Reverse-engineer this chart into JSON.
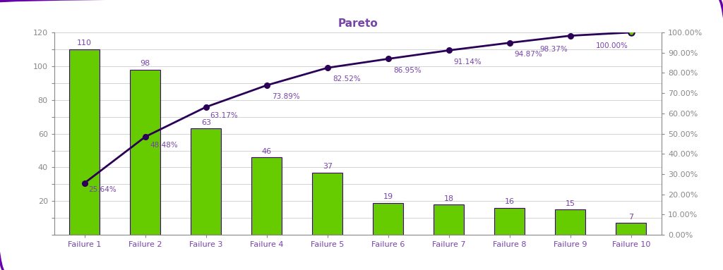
{
  "categories": [
    "Failure 1",
    "Failure 2",
    "Failure 3",
    "Failure 4",
    "Failure 5",
    "Failure 6",
    "Failure 7",
    "Failure 8",
    "Failure 9",
    "Failure 10"
  ],
  "values": [
    110,
    98,
    63,
    46,
    37,
    19,
    18,
    16,
    15,
    7
  ],
  "cumulative_pct": [
    25.64,
    48.48,
    63.17,
    73.89,
    82.52,
    86.95,
    91.14,
    94.87,
    98.37,
    100.0
  ],
  "pct_labels": [
    "25.64%",
    "48.48%",
    "63.17%",
    "73.89%",
    "82.52%",
    "86.95%",
    "91.14%",
    "94.87%",
    "98.37%",
    "100.00%"
  ],
  "title": "Pareto",
  "bar_color": "#66cc00",
  "bar_edge_color": "#440088",
  "line_color": "#2b0057",
  "marker_face_color": "#2b0057",
  "last_marker_face": "#66cc00",
  "background_color": "#ffffff",
  "border_color": "#6600aa",
  "text_color": "#7744aa",
  "axis_color": "#888888",
  "ylim_left": [
    0,
    120
  ],
  "ylim_right": [
    0,
    100
  ],
  "yticks_left": [
    0,
    10,
    20,
    30,
    40,
    50,
    60,
    70,
    80,
    90,
    100,
    110,
    120
  ],
  "yticks_right": [
    0,
    10,
    20,
    30,
    40,
    50,
    60,
    70,
    80,
    90,
    100
  ],
  "ytick_labels_left": [
    "",
    "",
    "20",
    "",
    "40",
    "",
    "60",
    "",
    "80",
    "",
    "100",
    "",
    "120"
  ],
  "ytick_labels_right": [
    "0.00%",
    "10.00%",
    "20.00%",
    "30.00%",
    "40.00%",
    "50.00%",
    "60.00%",
    "70.00%",
    "80.00%",
    "90.00%",
    "100.00%"
  ],
  "title_fontsize": 11,
  "label_fontsize": 8,
  "tick_fontsize": 8,
  "bar_width": 0.5
}
